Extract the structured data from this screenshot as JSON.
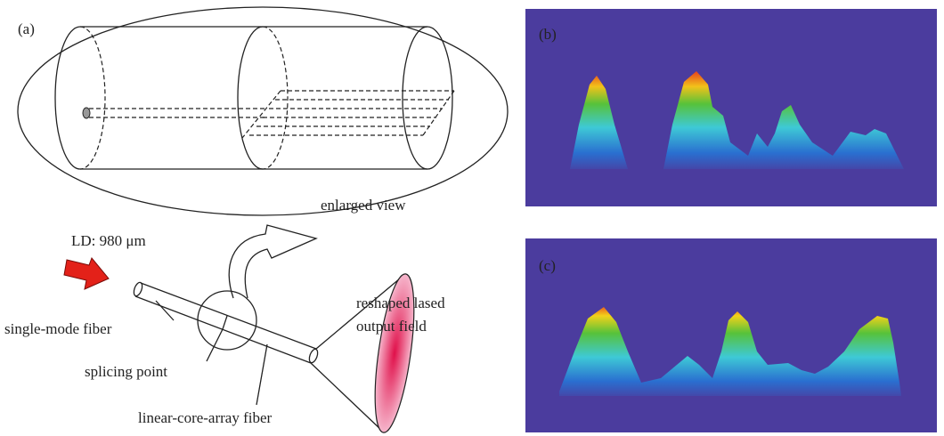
{
  "panels": {
    "a": {
      "label": "(a)",
      "enlarged_view": "enlarged view",
      "source": "LD: 980 μm",
      "single_mode_fiber": "single-mode fiber",
      "splicing_point": "splicing point",
      "linear_core_array_fiber": "linear-core-array fiber",
      "output": [
        "reshaped lased",
        "output field"
      ]
    },
    "b": {
      "label": "(b)"
    },
    "c": {
      "label": "(c)"
    }
  }
}
